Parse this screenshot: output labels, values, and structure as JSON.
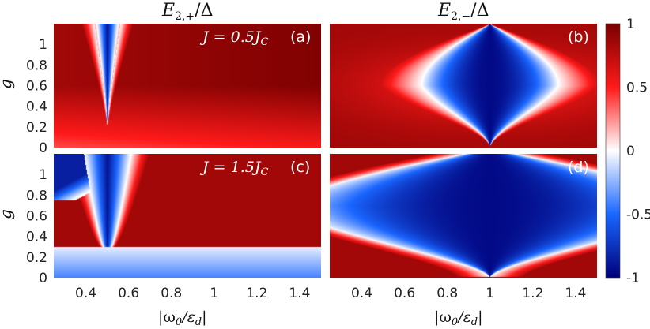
{
  "chart_data": [
    {
      "type": "heatmap",
      "panel_label": "(a)",
      "title": "E_{2,+}/Δ",
      "annotation": "J = 0.5J_C",
      "xlabel": "",
      "ylabel": "g",
      "xlim": [
        0.25,
        1.5
      ],
      "ylim": [
        0,
        1.2
      ],
      "y_ticks": [
        "0",
        "0.2",
        "0.4",
        "0.6",
        "0.8",
        "1"
      ],
      "x_ticks": [],
      "feature": {
        "kind": "negative wedge",
        "x_center": 0.5,
        "g_onset": 0.25,
        "g_top": 1.2
      },
      "background_value": 0.85,
      "color_range": [
        -1,
        1
      ]
    },
    {
      "type": "heatmap",
      "panel_label": "(b)",
      "title": "E_{2,-}/Δ",
      "xlabel": "",
      "ylabel": "",
      "xlim": [
        0.25,
        1.5
      ],
      "ylim": [
        0,
        1.2
      ],
      "y_ticks": [],
      "x_ticks": [],
      "feature": {
        "kind": "negative lens",
        "x_center": 1.0,
        "g_peak": 0.6,
        "max_half_width": 0.3
      },
      "background_value": 0.85,
      "color_range": [
        -1,
        1
      ]
    },
    {
      "type": "heatmap",
      "panel_label": "(c)",
      "annotation": "J = 1.5J_C",
      "xlabel": "|ω_0/ε_d|",
      "ylabel": "g",
      "xlim": [
        0.25,
        1.5
      ],
      "ylim": [
        0,
        1.2
      ],
      "y_ticks": [
        "0",
        "0.2",
        "0.4",
        "0.6",
        "0.8",
        "1"
      ],
      "x_ticks": [
        "0.4",
        "0.6",
        "0.8",
        "1",
        "1.2",
        "1.4"
      ],
      "feature": {
        "kind": "negative band below g=0.3 plus wedge at x=0.5",
        "band_g": 0.3,
        "x_center": 0.5
      },
      "background_value": 0.85,
      "color_range": [
        -1,
        1
      ]
    },
    {
      "type": "heatmap",
      "panel_label": "(d)",
      "xlabel": "|ω_0/ε_d|",
      "ylabel": "",
      "xlim": [
        0.25,
        1.5
      ],
      "ylim": [
        0,
        1.2
      ],
      "y_ticks": [],
      "x_ticks": [
        "0.4",
        "0.6",
        "0.8",
        "1",
        "1.2",
        "1.4"
      ],
      "feature": {
        "kind": "negative lens",
        "x_center": 1.0,
        "g_peak": 0.7,
        "max_half_width": 0.9
      },
      "background_value": 0.85,
      "color_range": [
        -1,
        1
      ]
    }
  ],
  "colorbar": {
    "ticks": [
      "1",
      "0.5",
      "0",
      "-0.5",
      "-1"
    ],
    "values": [
      1,
      0.5,
      0,
      -0.5,
      -1
    ],
    "colors": {
      "max": "#7a0000",
      "pos": "#ff1a1a",
      "zero": "#ffffff",
      "neg": "#1a66ff",
      "min": "#00007a"
    }
  },
  "labels": {
    "title_left": "E",
    "title_left_sub": "2,+",
    "title_right": "E",
    "title_right_sub": "2,−",
    "title_tail": "/Δ",
    "ann_a": "J = 0.5J",
    "ann_c": "J = 1.5J",
    "ann_sub": "C",
    "g_label": "g",
    "x_label_main": "|ω",
    "x_label_sub0": "0",
    "x_label_mid": "/ε",
    "x_label_subd": "d",
    "x_label_end": "|",
    "panel_a": "(a)",
    "panel_b": "(b)",
    "panel_c": "(c)",
    "panel_d": "(d)"
  }
}
